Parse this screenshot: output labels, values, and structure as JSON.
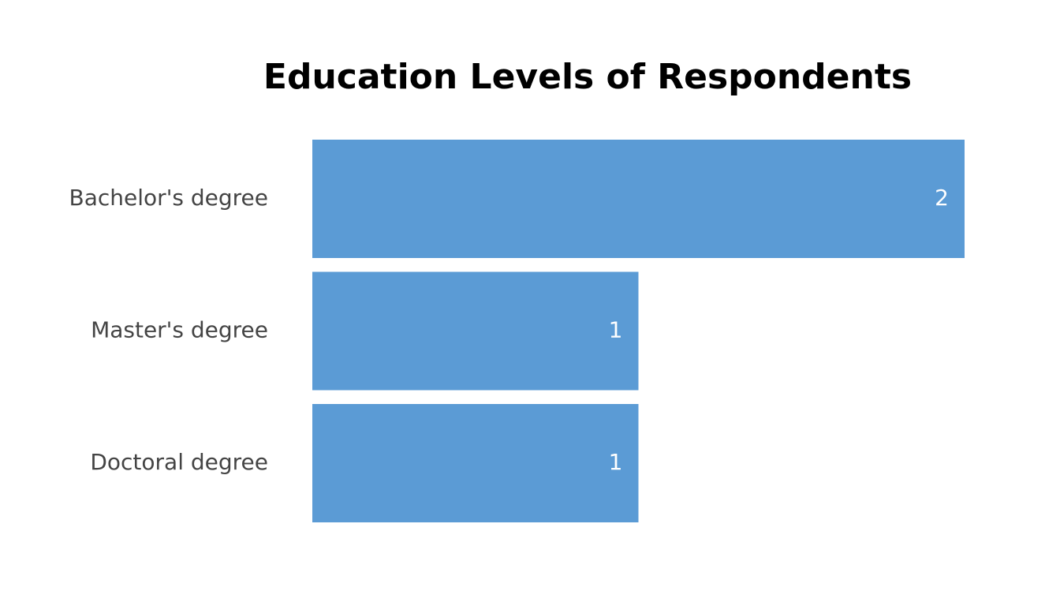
{
  "chart_data": {
    "type": "hbar",
    "title": "Education Levels of Respondents",
    "categories": [
      "Bachelor's degree",
      "Master's degree",
      "Doctoral degree"
    ],
    "values": [
      2,
      1,
      1
    ],
    "color": "#5b9bd5"
  }
}
